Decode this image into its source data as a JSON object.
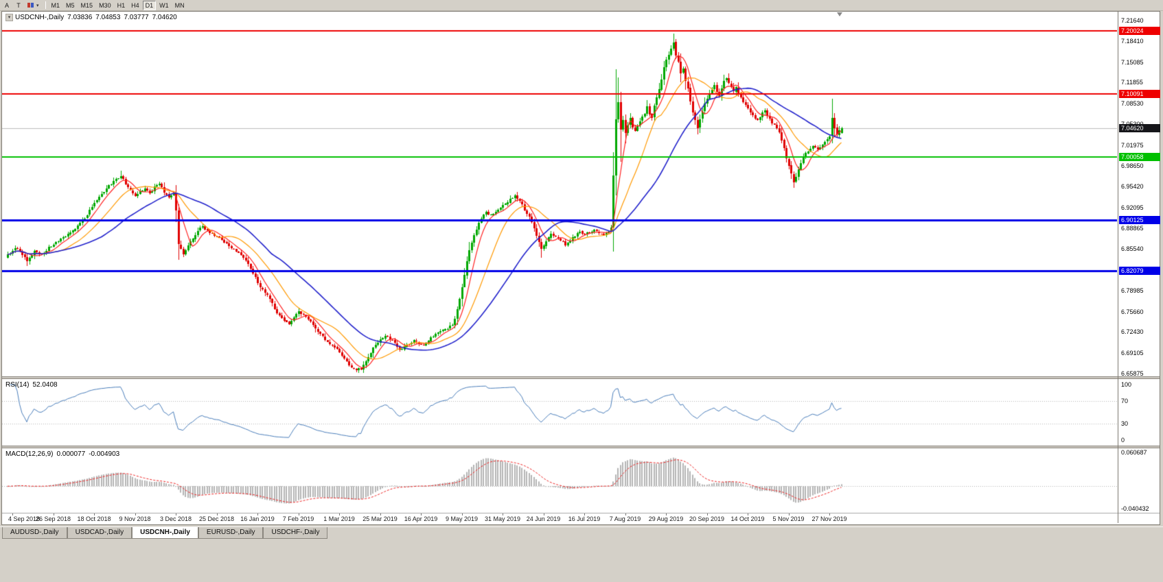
{
  "toolbar": {
    "left_tools": [
      {
        "label": "A"
      },
      {
        "label": "T"
      }
    ],
    "cursor_dropdown_icon": "▾",
    "timeframes": [
      {
        "label": "M1",
        "active": false
      },
      {
        "label": "M5",
        "active": false
      },
      {
        "label": "M15",
        "active": false
      },
      {
        "label": "M30",
        "active": false
      },
      {
        "label": "H1",
        "active": false
      },
      {
        "label": "H4",
        "active": false
      },
      {
        "label": "D1",
        "active": true
      },
      {
        "label": "W1",
        "active": false
      },
      {
        "label": "MN",
        "active": false
      }
    ]
  },
  "chart": {
    "symbol_title": "USDCNH-,Daily",
    "ohlc": {
      "open": "7.03836",
      "high": "7.04853",
      "low": "7.03777",
      "close": "7.04620"
    }
  },
  "rsi_panel": {
    "label": "RSI(14)",
    "value": "52.0408",
    "scale_labels": [
      {
        "v": 100,
        "text": "100"
      },
      {
        "v": 70,
        "text": "70"
      },
      {
        "v": 30,
        "text": "30"
      },
      {
        "v": 0,
        "text": "0"
      }
    ]
  },
  "macd_panel": {
    "label": "MACD(12,26,9)",
    "value_main": "0.000077",
    "value_signal": "-0.004903",
    "scale_top": "0.060687",
    "scale_bottom": "-0.040432"
  },
  "tabs": [
    {
      "label": "AUDUSD-,Daily",
      "active": false
    },
    {
      "label": "USDCAD-,Daily",
      "active": false
    },
    {
      "label": "USDCNH-,Daily",
      "active": true
    },
    {
      "label": "EURUSD-,Daily",
      "active": false
    },
    {
      "label": "USDCHF-,Daily",
      "active": false
    }
  ],
  "chart_data": {
    "type": "candlestick",
    "symbol": "USDCNH",
    "period": "Daily",
    "bars_total": 348,
    "price_range": {
      "top": 7.2305,
      "bottom": 6.6544
    },
    "y_axis_labels": [
      "7.21640",
      "7.18410",
      "7.15085",
      "7.11855",
      "7.08530",
      "7.05300",
      "7.01975",
      "6.98650",
      "6.95420",
      "6.92095",
      "6.88865",
      "6.85540",
      "6.82310",
      "6.78985",
      "6.75660",
      "6.72430",
      "6.69105",
      "6.65875"
    ],
    "x_axis_labels": [
      "4 Sep 2018",
      "26 Sep 2018",
      "18 Oct 2018",
      "9 Nov 2018",
      "3 Dec 2018",
      "25 Dec 2018",
      "16 Jan 2019",
      "7 Feb 2019",
      "1 Mar 2019",
      "25 Mar 2019",
      "16 Apr 2019",
      "9 May 2019",
      "31 May 2019",
      "24 Jun 2019",
      "16 Jul 2019",
      "7 Aug 2019",
      "29 Aug 2019",
      "20 Sep 2019",
      "14 Oct 2019",
      "5 Nov 2019",
      "27 Nov 2019"
    ],
    "x_label_first_bar": 2,
    "x_label_bar_step": 17,
    "current_price": {
      "value": 7.0462,
      "label": "7.04620",
      "color": "#16161a"
    },
    "horizontal_lines": [
      {
        "value": 7.20024,
        "label": "7.20024",
        "color": "#ee0000",
        "width": 2
      },
      {
        "value": 7.10091,
        "label": "7.10091",
        "color": "#ee0000",
        "width": 2
      },
      {
        "value": 7.00058,
        "label": "7.00058",
        "color": "#00c000",
        "width": 2
      },
      {
        "value": 6.90125,
        "label": "6.90125",
        "color": "#0000e8",
        "width": 3
      },
      {
        "value": 6.82079,
        "label": "6.82079",
        "color": "#0000e8",
        "width": 3
      }
    ],
    "moving_averages": [
      {
        "period": 7,
        "color": "#ff2020",
        "width": 1.2
      },
      {
        "period": 18,
        "color": "#ff9900",
        "width": 1.2
      },
      {
        "period": 40,
        "color": "#2222cc",
        "width": 1.6
      }
    ],
    "candle_colors": {
      "up": "#00a800",
      "down": "#e00000"
    },
    "price_anchors": [
      [
        0,
        6.846
      ],
      [
        3,
        6.858
      ],
      [
        6,
        6.848
      ],
      [
        8,
        6.836
      ],
      [
        11,
        6.853
      ],
      [
        14,
        6.847
      ],
      [
        17,
        6.858
      ],
      [
        19,
        6.864
      ],
      [
        22,
        6.871
      ],
      [
        25,
        6.878
      ],
      [
        28,
        6.888
      ],
      [
        31,
        6.9
      ],
      [
        34,
        6.916
      ],
      [
        36,
        6.927
      ],
      [
        39,
        6.942
      ],
      [
        42,
        6.955
      ],
      [
        45,
        6.966
      ],
      [
        47,
        6.971
      ],
      [
        49,
        6.958
      ],
      [
        51,
        6.948
      ],
      [
        53,
        6.941
      ],
      [
        55,
        6.946
      ],
      [
        57,
        6.95
      ],
      [
        59,
        6.944
      ],
      [
        61,
        6.953
      ],
      [
        63,
        6.958
      ],
      [
        65,
        6.946
      ],
      [
        67,
        6.938
      ],
      [
        69,
        6.945
      ],
      [
        70,
        6.915
      ],
      [
        71,
        6.862
      ],
      [
        73,
        6.847
      ],
      [
        75,
        6.86
      ],
      [
        77,
        6.872
      ],
      [
        79,
        6.884
      ],
      [
        81,
        6.891
      ],
      [
        83,
        6.884
      ],
      [
        85,
        6.879
      ],
      [
        87,
        6.876
      ],
      [
        89,
        6.87
      ],
      [
        91,
        6.864
      ],
      [
        93,
        6.858
      ],
      [
        95,
        6.851
      ],
      [
        97,
        6.846
      ],
      [
        99,
        6.838
      ],
      [
        101,
        6.824
      ],
      [
        103,
        6.81
      ],
      [
        105,
        6.796
      ],
      [
        107,
        6.786
      ],
      [
        109,
        6.778
      ],
      [
        111,
        6.76
      ],
      [
        113,
        6.75
      ],
      [
        115,
        6.741
      ],
      [
        117,
        6.738
      ],
      [
        119,
        6.748
      ],
      [
        121,
        6.756
      ],
      [
        123,
        6.752
      ],
      [
        125,
        6.746
      ],
      [
        127,
        6.736
      ],
      [
        129,
        6.726
      ],
      [
        131,
        6.718
      ],
      [
        133,
        6.708
      ],
      [
        135,
        6.702
      ],
      [
        137,
        6.697
      ],
      [
        139,
        6.688
      ],
      [
        141,
        6.677
      ],
      [
        143,
        6.669
      ],
      [
        145,
        6.665
      ],
      [
        147,
        6.667
      ],
      [
        149,
        6.678
      ],
      [
        151,
        6.692
      ],
      [
        153,
        6.704
      ],
      [
        155,
        6.712
      ],
      [
        157,
        6.719
      ],
      [
        159,
        6.714
      ],
      [
        161,
        6.707
      ],
      [
        163,
        6.697
      ],
      [
        165,
        6.701
      ],
      [
        167,
        6.706
      ],
      [
        169,
        6.711
      ],
      [
        171,
        6.707
      ],
      [
        173,
        6.703
      ],
      [
        175,
        6.712
      ],
      [
        177,
        6.718
      ],
      [
        179,
        6.722
      ],
      [
        181,
        6.727
      ],
      [
        183,
        6.731
      ],
      [
        185,
        6.737
      ],
      [
        186,
        6.745
      ],
      [
        187,
        6.762
      ],
      [
        188,
        6.778
      ],
      [
        189,
        6.796
      ],
      [
        190,
        6.816
      ],
      [
        191,
        6.836
      ],
      [
        192,
        6.852
      ],
      [
        193,
        6.866
      ],
      [
        195,
        6.888
      ],
      [
        197,
        6.904
      ],
      [
        199,
        6.914
      ],
      [
        201,
        6.908
      ],
      [
        203,
        6.916
      ],
      [
        205,
        6.922
      ],
      [
        207,
        6.928
      ],
      [
        209,
        6.934
      ],
      [
        211,
        6.941
      ],
      [
        213,
        6.932
      ],
      [
        215,
        6.918
      ],
      [
        217,
        6.905
      ],
      [
        219,
        6.888
      ],
      [
        221,
        6.868
      ],
      [
        222,
        6.854
      ],
      [
        224,
        6.868
      ],
      [
        226,
        6.88
      ],
      [
        228,
        6.876
      ],
      [
        230,
        6.87
      ],
      [
        232,
        6.863
      ],
      [
        234,
        6.87
      ],
      [
        236,
        6.876
      ],
      [
        238,
        6.882
      ],
      [
        240,
        6.879
      ],
      [
        242,
        6.882
      ],
      [
        244,
        6.886
      ],
      [
        246,
        6.881
      ],
      [
        248,
        6.878
      ],
      [
        250,
        6.884
      ],
      [
        251,
        6.89
      ],
      [
        252,
        6.972
      ],
      [
        253,
        7.062
      ],
      [
        254,
        7.088
      ],
      [
        255,
        7.045
      ],
      [
        256,
        7.06
      ],
      [
        257,
        7.04
      ],
      [
        258,
        7.052
      ],
      [
        259,
        7.062
      ],
      [
        260,
        7.048
      ],
      [
        261,
        7.042
      ],
      [
        262,
        7.052
      ],
      [
        263,
        7.057
      ],
      [
        264,
        7.064
      ],
      [
        265,
        7.071
      ],
      [
        266,
        7.08
      ],
      [
        267,
        7.068
      ],
      [
        268,
        7.062
      ],
      [
        269,
        7.082
      ],
      [
        270,
        7.094
      ],
      [
        271,
        7.106
      ],
      [
        272,
        7.124
      ],
      [
        273,
        7.141
      ],
      [
        274,
        7.156
      ],
      [
        275,
        7.164
      ],
      [
        276,
        7.172
      ],
      [
        277,
        7.183
      ],
      [
        278,
        7.162
      ],
      [
        279,
        7.15
      ],
      [
        280,
        7.134
      ],
      [
        281,
        7.14
      ],
      [
        282,
        7.122
      ],
      [
        283,
        7.108
      ],
      [
        284,
        7.09
      ],
      [
        285,
        7.072
      ],
      [
        286,
        7.058
      ],
      [
        287,
        7.048
      ],
      [
        288,
        7.062
      ],
      [
        289,
        7.074
      ],
      [
        290,
        7.086
      ],
      [
        291,
        7.094
      ],
      [
        292,
        7.102
      ],
      [
        293,
        7.108
      ],
      [
        294,
        7.114
      ],
      [
        295,
        7.104
      ],
      [
        296,
        7.098
      ],
      [
        297,
        7.11
      ],
      [
        298,
        7.12
      ],
      [
        299,
        7.126
      ],
      [
        300,
        7.118
      ],
      [
        301,
        7.112
      ],
      [
        302,
        7.106
      ],
      [
        303,
        7.11
      ],
      [
        304,
        7.1
      ],
      [
        305,
        7.094
      ],
      [
        306,
        7.088
      ],
      [
        307,
        7.084
      ],
      [
        308,
        7.079
      ],
      [
        309,
        7.072
      ],
      [
        310,
        7.066
      ],
      [
        311,
        7.062
      ],
      [
        312,
        7.058
      ],
      [
        313,
        7.064
      ],
      [
        314,
        7.07
      ],
      [
        315,
        7.074
      ],
      [
        316,
        7.066
      ],
      [
        317,
        7.06
      ],
      [
        318,
        7.055
      ],
      [
        319,
        7.052
      ],
      [
        320,
        7.047
      ],
      [
        321,
        7.04
      ],
      [
        322,
        7.028
      ],
      [
        323,
        7.014
      ],
      [
        324,
        7.0
      ],
      [
        325,
        6.988
      ],
      [
        326,
        6.974
      ],
      [
        327,
        6.962
      ],
      [
        328,
        6.97
      ],
      [
        329,
        6.98
      ],
      [
        330,
        6.992
      ],
      [
        331,
        7.001
      ],
      [
        332,
        7.006
      ],
      [
        333,
        7.011
      ],
      [
        334,
        7.014
      ],
      [
        335,
        7.017
      ],
      [
        336,
        7.014
      ],
      [
        337,
        7.011
      ],
      [
        338,
        7.015
      ],
      [
        339,
        7.02
      ],
      [
        340,
        7.025
      ],
      [
        341,
        7.029
      ],
      [
        342,
        7.034
      ],
      [
        343,
        7.062
      ],
      [
        344,
        7.047
      ],
      [
        345,
        7.036
      ],
      [
        346,
        7.042
      ],
      [
        347,
        7.0462
      ]
    ],
    "wick_overrides": [
      [
        8,
        "l",
        6.829
      ],
      [
        47,
        "h",
        6.979
      ],
      [
        71,
        "l",
        6.838
      ],
      [
        146,
        "l",
        6.6595
      ],
      [
        190,
        "l",
        6.798
      ],
      [
        222,
        "l",
        6.842
      ],
      [
        253,
        "h",
        7.139
      ],
      [
        254,
        "h",
        7.127
      ],
      [
        255,
        "l",
        6.993
      ],
      [
        277,
        "h",
        7.1962
      ],
      [
        283,
        "h",
        7.128
      ],
      [
        327,
        "l",
        6.9525
      ],
      [
        343,
        "h",
        7.0935
      ]
    ],
    "rsi": {
      "period": 14,
      "color": "#4a7ebb",
      "levels": [
        30,
        70
      ],
      "range": [
        0,
        100
      ]
    },
    "macd": {
      "fast": 12,
      "slow": 26,
      "signal_period": 9,
      "histogram_color": "#b4b4b4",
      "signal_color": "#ee2222",
      "range": [
        -0.040432,
        0.060687
      ]
    }
  }
}
